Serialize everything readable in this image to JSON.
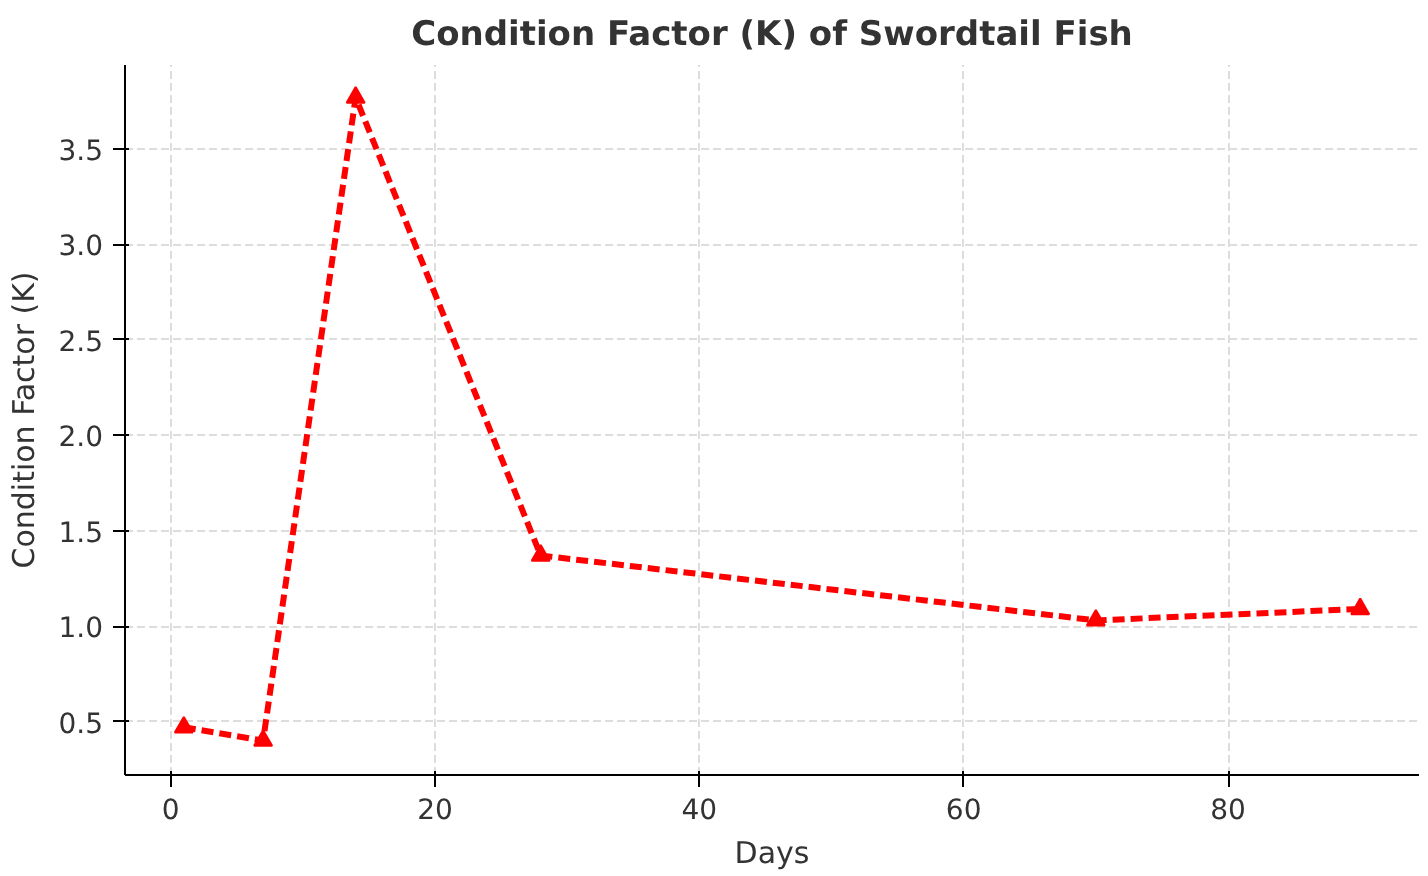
{
  "chart_data": {
    "type": "line",
    "title": "Condition Factor (K) of Swordtail Fish",
    "xlabel": "Days",
    "ylabel": "Condition Factor (K)",
    "x": [
      1,
      7,
      14,
      28,
      70,
      90
    ],
    "series": [
      {
        "color": "#ff0000",
        "values": [
          0.47,
          0.4,
          3.77,
          1.37,
          1.03,
          1.09
        ]
      }
    ],
    "xlim": [
      -3.45,
      94.45
    ],
    "ylim": [
      0.22,
      3.94
    ],
    "xticks": [
      0,
      20,
      40,
      60,
      80
    ],
    "yticks": [
      0.5,
      {
        "value": 1,
        "label": "1.0"
      },
      1.5,
      {
        "value": 2,
        "label": "2.0"
      },
      2.5,
      {
        "value": 3,
        "label": "3.0"
      },
      3.5
    ],
    "grid": true,
    "marker": "triangle",
    "line_style": "dashed"
  }
}
